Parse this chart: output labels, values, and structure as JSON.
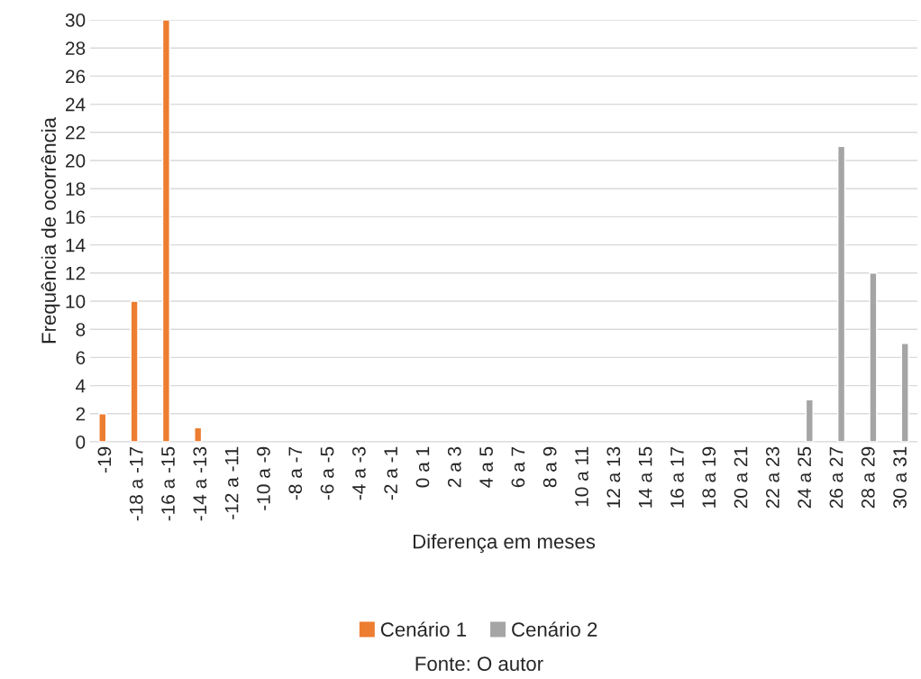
{
  "chart_data": {
    "type": "bar",
    "xlabel": "Diferença em meses",
    "ylabel": "Frequência de ocorrência",
    "categories": [
      "-19",
      "-18 a -17",
      "-16 a -15",
      "-14 a -13",
      "-12 a -11",
      "-10 a -9",
      "-8 a -7",
      "-6 a -5",
      "-4 a -3",
      "-2 a -1",
      "0 a 1",
      "2 a 3",
      "4 a 5",
      "6 a 7",
      "8 a 9",
      "10 a 11",
      "12 a 13",
      "14 a 15",
      "16 a 17",
      "18 a 19",
      "20 a 21",
      "22 a 23",
      "24 a 25",
      "26 a 27",
      "28 a 29",
      "30 a 31"
    ],
    "series": [
      {
        "name": "Cenário 1",
        "color": "#ed7d31",
        "values": [
          2,
          10,
          30,
          1,
          null,
          null,
          null,
          null,
          null,
          null,
          null,
          null,
          null,
          null,
          null,
          null,
          null,
          null,
          null,
          null,
          null,
          null,
          null,
          null,
          null,
          null
        ]
      },
      {
        "name": "Cenário 2",
        "color": "#a5a5a5",
        "values": [
          null,
          null,
          null,
          null,
          null,
          null,
          null,
          null,
          null,
          null,
          null,
          null,
          null,
          null,
          null,
          null,
          null,
          null,
          null,
          null,
          null,
          null,
          3,
          21,
          12,
          7
        ]
      }
    ],
    "ylim": [
      0,
      30
    ],
    "yticks": [
      0,
      2,
      4,
      6,
      8,
      10,
      12,
      14,
      16,
      18,
      20,
      22,
      24,
      26,
      28,
      30
    ],
    "grid": "y",
    "legend": "bottom",
    "annotations": [
      "Fonte: O autor"
    ]
  }
}
